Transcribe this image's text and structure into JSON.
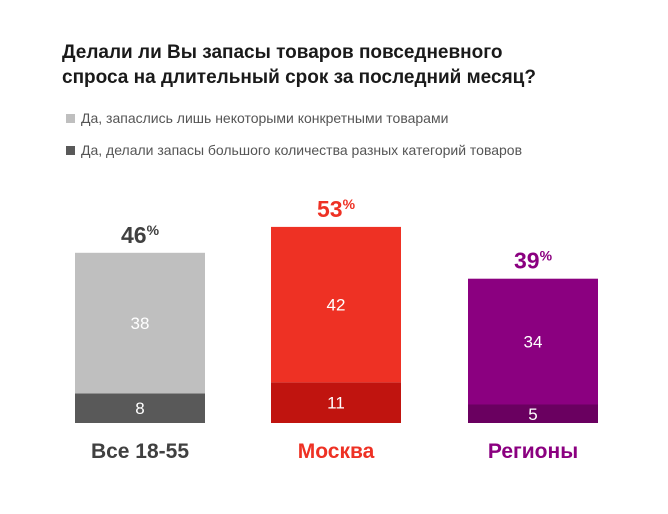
{
  "title": {
    "line1": "Делали ли Вы запасы товаров повседневного",
    "line2": "спроса на длительный срок за последний месяц?"
  },
  "legend": [
    {
      "label": "Да, запаслись лишь некоторыми конкретными товарами",
      "color": "#bfbfbf"
    },
    {
      "label": "Да, делали запасы большого количества разных категорий товаров",
      "color": "#595959"
    }
  ],
  "chart_data": {
    "type": "bar",
    "stacked": true,
    "categories": [
      "Все 18-55",
      "Москва",
      "Регионы"
    ],
    "series": [
      {
        "name": "Да, запаслись лишь некоторыми конкретными товарами",
        "values": [
          38,
          42,
          34
        ]
      },
      {
        "name": "Да, делали запасы большого количества разных категорий товаров",
        "values": [
          8,
          11,
          5
        ]
      }
    ],
    "totals": [
      "46",
      "53",
      "39"
    ],
    "total_suffix": "%",
    "colors": {
      "top": [
        "#bfbfbf",
        "#ee3124",
        "#8b0080"
      ],
      "bottom": [
        "#595959",
        "#c0140f",
        "#6a0060"
      ],
      "label": [
        "#404040",
        "#ee3124",
        "#8b0080"
      ]
    },
    "ylim": [
      0,
      53
    ]
  }
}
